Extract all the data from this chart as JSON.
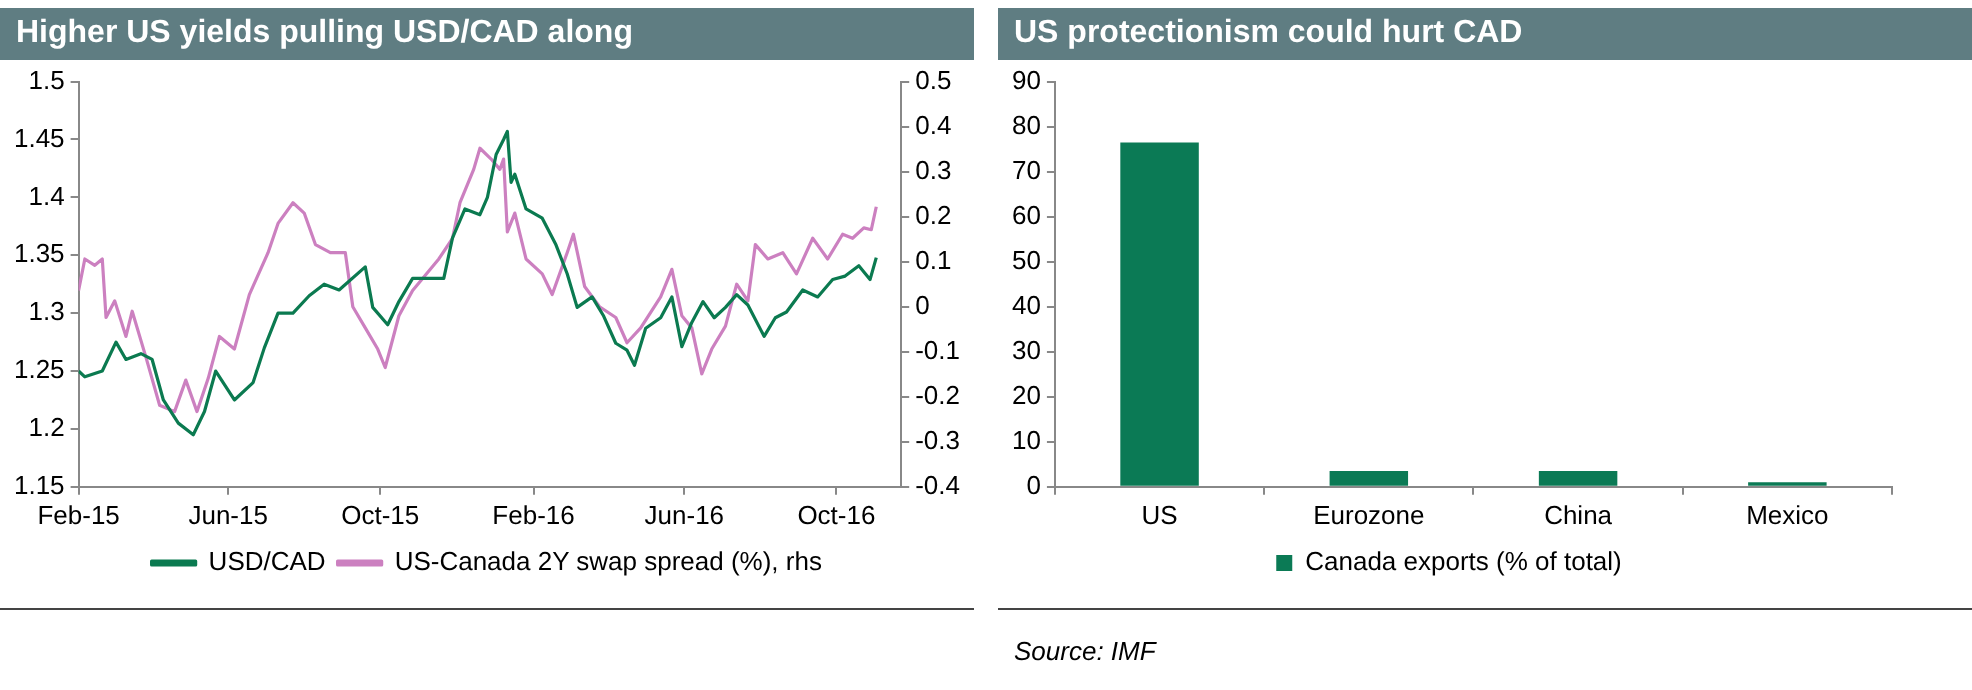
{
  "chart_data": [
    {
      "type": "line",
      "title": "Higher US yields pulling USD/CAD along",
      "xlim": [
        "2015-02-01",
        "2016-11-22"
      ],
      "xticks": [
        {
          "value": "2015-02",
          "label": "Feb-15"
        },
        {
          "value": "2015-06",
          "label": "Jun-15"
        },
        {
          "value": "2015-10",
          "label": "Oct-15"
        },
        {
          "value": "2016-02",
          "label": "Feb-16"
        },
        {
          "value": "2016-06",
          "label": "Jun-16"
        },
        {
          "value": "2016-10",
          "label": "Oct-16"
        }
      ],
      "ylim": [
        1.15,
        1.5
      ],
      "yticks": [
        1.15,
        1.2,
        1.25,
        1.3,
        1.35,
        1.4,
        1.45,
        1.5
      ],
      "y2lim": [
        -0.4,
        0.5
      ],
      "y2ticks": [
        -0.4,
        -0.3,
        -0.2,
        -0.1,
        0,
        0.1,
        0.2,
        0.3,
        0.4,
        0.5
      ],
      "grid": false,
      "legend": "bottom",
      "marker": "none",
      "series": [
        {
          "name": "USD/CAD",
          "color": "#0b7a50",
          "x": [
            "2015-02-01",
            "2015-02-06",
            "2015-02-20",
            "2015-03-03",
            "2015-03-11",
            "2015-03-23",
            "2015-04-01",
            "2015-04-10",
            "2015-04-22",
            "2015-05-04",
            "2015-05-13",
            "2015-05-22",
            "2015-06-06",
            "2015-06-21",
            "2015-06-30",
            "2015-07-11",
            "2015-07-23",
            "2015-08-05",
            "2015-08-17",
            "2015-08-29",
            "2015-09-19",
            "2015-09-25",
            "2015-10-07",
            "2015-10-16",
            "2015-10-27",
            "2015-11-21",
            "2015-11-28",
            "2015-12-08",
            "2015-12-20",
            "2015-12-26",
            "2016-01-02",
            "2016-01-08",
            "2016-01-11",
            "2016-01-14",
            "2016-01-17",
            "2016-01-26",
            "2016-02-08",
            "2016-02-19",
            "2016-02-28",
            "2016-03-07",
            "2016-03-19",
            "2016-03-28",
            "2016-04-07",
            "2016-04-16",
            "2016-04-22",
            "2016-05-01",
            "2016-05-13",
            "2016-05-22",
            "2016-05-30",
            "2016-06-07",
            "2016-06-16",
            "2016-06-25",
            "2016-07-04",
            "2016-07-13",
            "2016-07-22",
            "2016-08-04",
            "2016-08-13",
            "2016-08-22",
            "2016-09-04",
            "2016-09-16",
            "2016-09-28",
            "2016-10-08",
            "2016-10-19",
            "2016-10-28",
            "2016-11-02"
          ],
          "values": [
            1.25,
            1.245,
            1.25,
            1.275,
            1.26,
            1.265,
            1.26,
            1.225,
            1.205,
            1.195,
            1.215,
            1.25,
            1.225,
            1.24,
            1.27,
            1.3,
            1.3,
            1.315,
            1.325,
            1.32,
            1.34,
            1.305,
            1.29,
            1.31,
            1.33,
            1.33,
            1.365,
            1.39,
            1.385,
            1.4,
            1.437,
            1.45,
            1.457,
            1.413,
            1.42,
            1.39,
            1.382,
            1.359,
            1.334,
            1.305,
            1.314,
            1.298,
            1.274,
            1.268,
            1.255,
            1.287,
            1.296,
            1.314,
            1.271,
            1.292,
            1.31,
            1.296,
            1.305,
            1.316,
            1.307,
            1.28,
            1.296,
            1.301,
            1.32,
            1.314,
            1.329,
            1.332,
            1.341,
            1.329,
            1.348
          ]
        },
        {
          "name": "US-Canada 2Y swap spread (%), rhs",
          "color": "#cc80c0",
          "axis": "y2",
          "x": [
            "2015-02-01",
            "2015-02-06",
            "2015-02-14",
            "2015-02-20",
            "2015-02-23",
            "2015-03-02",
            "2015-03-11",
            "2015-03-16",
            "2015-03-27",
            "2015-04-07",
            "2015-04-19",
            "2015-04-28",
            "2015-05-07",
            "2015-05-16",
            "2015-05-25",
            "2015-06-06",
            "2015-06-18",
            "2015-07-03",
            "2015-07-11",
            "2015-07-23",
            "2015-08-01",
            "2015-08-10",
            "2015-08-22",
            "2015-09-03",
            "2015-09-09",
            "2015-09-19",
            "2015-09-29",
            "2015-10-05",
            "2015-10-16",
            "2015-10-27",
            "2015-11-17",
            "2015-11-28",
            "2015-12-04",
            "2015-12-15",
            "2015-12-20",
            "2015-12-29",
            "2016-01-05",
            "2016-01-08",
            "2016-01-11",
            "2016-01-17",
            "2016-01-26",
            "2016-02-08",
            "2016-02-16",
            "2016-02-28",
            "2016-03-04",
            "2016-03-13",
            "2016-03-25",
            "2016-04-07",
            "2016-04-16",
            "2016-04-27",
            "2016-05-13",
            "2016-05-22",
            "2016-05-30",
            "2016-06-07",
            "2016-06-15",
            "2016-06-23",
            "2016-07-04",
            "2016-07-13",
            "2016-07-22",
            "2016-07-28",
            "2016-08-07",
            "2016-08-19",
            "2016-08-30",
            "2016-09-12",
            "2016-09-24",
            "2016-10-06",
            "2016-10-14",
            "2016-10-23",
            "2016-10-29",
            "2016-11-02"
          ],
          "values": [
            0.036,
            0.106,
            0.092,
            0.106,
            -0.024,
            0.013,
            -0.066,
            -0.01,
            -0.112,
            -0.219,
            -0.233,
            -0.163,
            -0.233,
            -0.159,
            -0.066,
            -0.094,
            0.027,
            0.12,
            0.185,
            0.231,
            0.208,
            0.138,
            0.12,
            0.12,
            0.0,
            -0.047,
            -0.094,
            -0.135,
            -0.02,
            0.036,
            0.106,
            0.152,
            0.231,
            0.305,
            0.352,
            0.328,
            0.305,
            0.328,
            0.166,
            0.208,
            0.106,
            0.073,
            0.027,
            0.12,
            0.161,
            0.045,
            0.0,
            -0.024,
            -0.08,
            -0.047,
            0.022,
            0.083,
            -0.02,
            -0.047,
            -0.149,
            -0.094,
            -0.043,
            0.05,
            0.013,
            0.138,
            0.106,
            0.12,
            0.073,
            0.152,
            0.106,
            0.161,
            0.152,
            0.175,
            0.171,
            0.222
          ]
        }
      ]
    },
    {
      "type": "bar",
      "title": "US protectionism could hurt CAD",
      "categories": [
        "US",
        "Eurozone",
        "China",
        "Mexico"
      ],
      "ylim": [
        0,
        90
      ],
      "yticks": [
        0,
        10,
        20,
        30,
        40,
        50,
        60,
        70,
        80,
        90
      ],
      "grid": false,
      "legend": "bottom",
      "series": [
        {
          "name": "Canada exports (% of total)",
          "color": "#0b7a55",
          "values": [
            76.5,
            3.5,
            3.5,
            1
          ]
        }
      ],
      "annotations": [
        "Source: IMF"
      ]
    }
  ]
}
